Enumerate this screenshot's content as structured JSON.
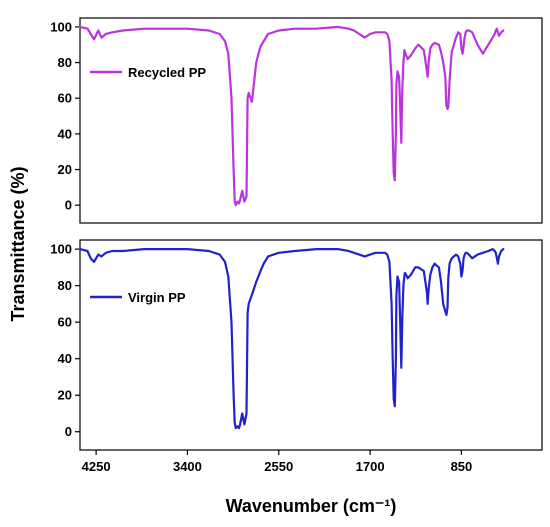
{
  "chart_data": {
    "type": "line",
    "ylabel": "Transmittance (%)",
    "xlabel": "Wavenumber (cm⁻¹)",
    "x_reversed": true,
    "xlim": [
      4400,
      100
    ],
    "x_ticks": [
      4250,
      3400,
      2550,
      1700,
      850
    ],
    "x_tick_labels": [
      "4250",
      "3400",
      "2550",
      "1700",
      "850"
    ],
    "panels": [
      {
        "legend": "top-left",
        "ylim": [
          -10,
          105
        ],
        "y_ticks": [
          0,
          20,
          40,
          60,
          80,
          100
        ],
        "y_tick_labels": [
          "0",
          "20",
          "40",
          "60",
          "80",
          "100"
        ],
        "series": [
          {
            "name": "Recycled PP",
            "color": "#bb33dd",
            "x": [
              4400,
              4330,
              4300,
              4270,
              4230,
              4200,
              4160,
              4100,
              4000,
              3800,
              3600,
              3400,
              3200,
              3100,
              3050,
              3020,
              2990,
              2970,
              2960,
              2950,
              2935,
              2920,
              2910,
              2890,
              2870,
              2850,
              2840,
              2830,
              2800,
              2760,
              2720,
              2690,
              2650,
              2550,
              2400,
              2200,
              2000,
              1900,
              1850,
              1800,
              1750,
              1700,
              1650,
              1600,
              1560,
              1540,
              1520,
              1500,
              1490,
              1480,
              1470,
              1460,
              1455,
              1445,
              1430,
              1420,
              1410,
              1400,
              1390,
              1380,
              1375,
              1365,
              1350,
              1320,
              1300,
              1280,
              1250,
              1200,
              1170,
              1165,
              1155,
              1140,
              1120,
              1100,
              1060,
              1040,
              1020,
              1000,
              990,
              980,
              972,
              960,
              940,
              920,
              900,
              880,
              860,
              850,
              840,
              830,
              820,
              810,
              800,
              780,
              750,
              700,
              650,
              600,
              560,
              540,
              530,
              520,
              510,
              500,
              480,
              460
            ],
            "y": [
              100,
              99,
              96,
              93,
              98,
              94,
              96,
              97,
              98,
              99,
              99,
              99,
              98,
              96,
              92,
              85,
              60,
              20,
              2,
              0,
              2,
              1,
              3,
              8,
              2,
              5,
              60,
              63,
              58,
              80,
              89,
              92,
              96,
              98,
              99,
              99,
              100,
              99,
              98,
              96,
              94,
              96,
              97,
              97,
              97,
              96,
              92,
              70,
              40,
              18,
              14,
              40,
              68,
              75,
              72,
              55,
              35,
              65,
              80,
              87,
              86,
              84,
              82,
              84,
              86,
              88,
              90,
              87,
              75,
              72,
              80,
              88,
              90,
              91,
              90,
              86,
              80,
              72,
              56,
              54,
              55,
              70,
              86,
              90,
              94,
              97,
              96,
              88,
              85,
              89,
              94,
              97,
              98,
              98,
              97,
              90,
              85,
              90,
              94,
              96,
              98,
              99,
              97,
              95,
              97,
              98
            ]
          }
        ]
      },
      {
        "legend": "top-left",
        "ylim": [
          -10,
          105
        ],
        "y_ticks": [
          0,
          20,
          40,
          60,
          80,
          100
        ],
        "y_tick_labels": [
          "0",
          "20",
          "40",
          "60",
          "80",
          "100"
        ],
        "series": [
          {
            "name": "Virgin PP",
            "color": "#2222cc",
            "x": [
              4400,
              4330,
              4300,
              4270,
              4230,
              4200,
              4160,
              4100,
              4000,
              3800,
              3600,
              3400,
              3200,
              3100,
              3050,
              3020,
              2990,
              2970,
              2960,
              2950,
              2935,
              2920,
              2910,
              2890,
              2870,
              2850,
              2840,
              2830,
              2800,
              2760,
              2720,
              2690,
              2650,
              2550,
              2400,
              2200,
              2000,
              1900,
              1850,
              1800,
              1750,
              1700,
              1650,
              1600,
              1560,
              1540,
              1520,
              1500,
              1490,
              1480,
              1470,
              1460,
              1455,
              1445,
              1430,
              1420,
              1410,
              1400,
              1390,
              1380,
              1375,
              1365,
              1350,
              1320,
              1300,
              1280,
              1250,
              1200,
              1170,
              1165,
              1155,
              1140,
              1120,
              1100,
              1060,
              1040,
              1020,
              1000,
              990,
              980,
              972,
              960,
              940,
              920,
              900,
              880,
              860,
              850,
              840,
              830,
              820,
              810,
              800,
              780,
              750,
              700,
              650,
              600,
              560,
              540,
              530,
              520,
              510,
              500,
              480,
              460
            ],
            "y": [
              100,
              99,
              95,
              93,
              97,
              96,
              98,
              99,
              99,
              100,
              100,
              100,
              99,
              97,
              93,
              85,
              60,
              20,
              5,
              2,
              3,
              2,
              4,
              10,
              4,
              10,
              65,
              70,
              75,
              82,
              88,
              92,
              96,
              98,
              99,
              100,
              100,
              99,
              98,
              97,
              96,
              97,
              98,
              98,
              98,
              97,
              93,
              70,
              40,
              18,
              14,
              40,
              75,
              85,
              82,
              60,
              35,
              62,
              80,
              86,
              87,
              86,
              84,
              86,
              88,
              90,
              90,
              88,
              76,
              70,
              78,
              86,
              90,
              92,
              90,
              82,
              70,
              66,
              64,
              68,
              84,
              92,
              95,
              96,
              97,
              96,
              92,
              85,
              88,
              95,
              97,
              98,
              98,
              97,
              95,
              97,
              98,
              99,
              100,
              99,
              98,
              95,
              92,
              96,
              99,
              100
            ]
          }
        ]
      }
    ]
  }
}
